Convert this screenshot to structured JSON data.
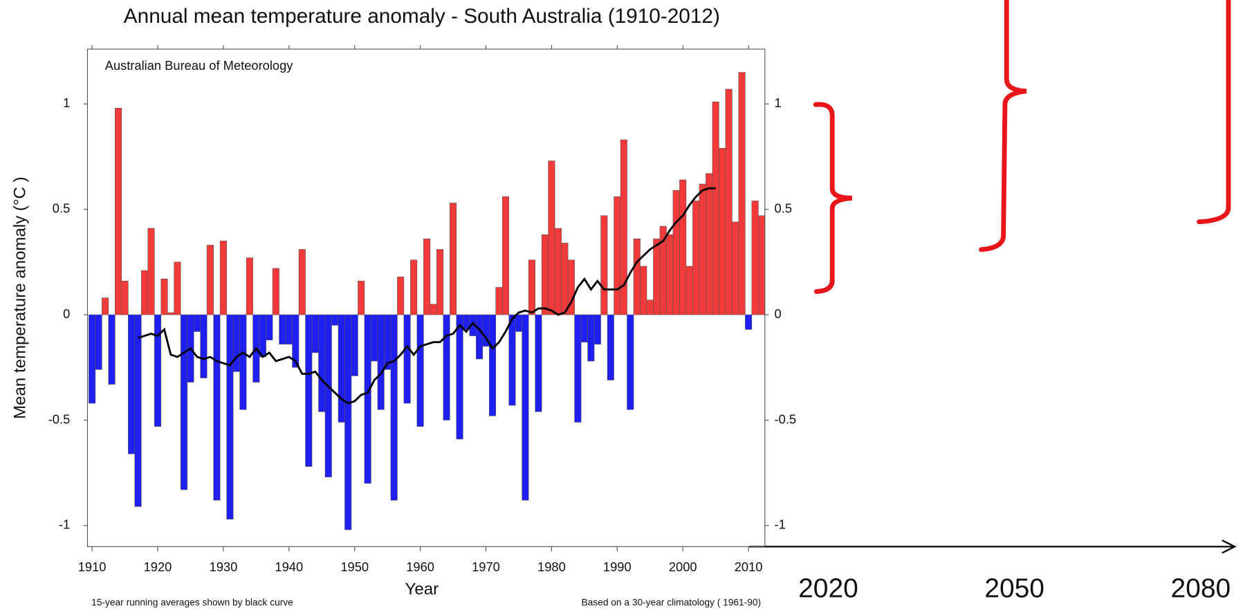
{
  "chart_data": {
    "type": "bar",
    "title": "Annual mean temperature anomaly - South Australia (1910-2012)",
    "source": "Australian Bureau of Meteorology",
    "xlabel": "Year",
    "ylabel": "Mean temperature anomaly (°C )",
    "footnote_left": "15-year running averages shown by black curve",
    "footnote_right": "Based on a 30-year climatology ( 1961-90)",
    "x": [
      1910,
      1911,
      1912,
      1913,
      1914,
      1915,
      1916,
      1917,
      1918,
      1919,
      1920,
      1921,
      1922,
      1923,
      1924,
      1925,
      1926,
      1927,
      1928,
      1929,
      1930,
      1931,
      1932,
      1933,
      1934,
      1935,
      1936,
      1937,
      1938,
      1939,
      1940,
      1941,
      1942,
      1943,
      1944,
      1945,
      1946,
      1947,
      1948,
      1949,
      1950,
      1951,
      1952,
      1953,
      1954,
      1955,
      1956,
      1957,
      1958,
      1959,
      1960,
      1961,
      1962,
      1963,
      1964,
      1965,
      1966,
      1967,
      1968,
      1969,
      1970,
      1971,
      1972,
      1973,
      1974,
      1975,
      1976,
      1977,
      1978,
      1979,
      1980,
      1981,
      1982,
      1983,
      1984,
      1985,
      1986,
      1987,
      1988,
      1989,
      1990,
      1991,
      1992,
      1993,
      1994,
      1995,
      1996,
      1997,
      1998,
      1999,
      2000,
      2001,
      2002,
      2003,
      2004,
      2005,
      2006,
      2007,
      2008,
      2009,
      2010,
      2011,
      2012
    ],
    "values": [
      -0.42,
      -0.26,
      0.08,
      -0.33,
      0.98,
      0.16,
      -0.66,
      -0.91,
      0.21,
      0.41,
      -0.53,
      0.17,
      0.01,
      0.25,
      -0.83,
      -0.32,
      -0.08,
      -0.3,
      0.33,
      -0.88,
      0.35,
      -0.97,
      -0.27,
      -0.45,
      0.27,
      -0.32,
      -0.2,
      -0.12,
      0.22,
      -0.14,
      -0.14,
      -0.25,
      0.31,
      -0.72,
      -0.18,
      -0.46,
      -0.77,
      -0.05,
      -0.51,
      -1.02,
      -0.29,
      0.16,
      -0.8,
      -0.22,
      -0.45,
      -0.26,
      -0.88,
      0.18,
      -0.42,
      0.26,
      -0.53,
      0.36,
      0.05,
      0.31,
      -0.5,
      0.53,
      -0.59,
      -0.07,
      -0.1,
      -0.21,
      -0.15,
      -0.48,
      0.13,
      0.56,
      -0.43,
      -0.08,
      -0.88,
      0.26,
      -0.46,
      0.38,
      0.73,
      0.41,
      0.34,
      0.26,
      -0.51,
      -0.13,
      -0.22,
      -0.14,
      0.47,
      -0.31,
      0.56,
      0.83,
      -0.45,
      0.36,
      0.23,
      0.07,
      0.36,
      0.42,
      0.38,
      0.59,
      0.64,
      0.23,
      0.54,
      0.62,
      0.67,
      1.01,
      0.79,
      1.07,
      0.44,
      1.15,
      -0.07,
      0.54,
      0.47
    ],
    "positive_color": "#f23a3a",
    "negative_color": "#1f1ff2",
    "running_average": {
      "color": "#000000",
      "x": [
        1917,
        1918,
        1919,
        1920,
        1921,
        1922,
        1923,
        1924,
        1925,
        1926,
        1927,
        1928,
        1929,
        1930,
        1931,
        1932,
        1933,
        1934,
        1935,
        1936,
        1937,
        1938,
        1939,
        1940,
        1941,
        1942,
        1943,
        1944,
        1945,
        1946,
        1947,
        1948,
        1949,
        1950,
        1951,
        1952,
        1953,
        1954,
        1955,
        1956,
        1957,
        1958,
        1959,
        1960,
        1961,
        1962,
        1963,
        1964,
        1965,
        1966,
        1967,
        1968,
        1969,
        1970,
        1971,
        1972,
        1973,
        1974,
        1975,
        1976,
        1977,
        1978,
        1979,
        1980,
        1981,
        1982,
        1983,
        1984,
        1985,
        1986,
        1987,
        1988,
        1989,
        1990,
        1991,
        1992,
        1993,
        1994,
        1995,
        1996,
        1997,
        1998,
        1999,
        2000,
        2001,
        2002,
        2003,
        2004,
        2005
      ],
      "values": [
        -0.11,
        -0.1,
        -0.09,
        -0.1,
        -0.07,
        -0.19,
        -0.2,
        -0.18,
        -0.16,
        -0.2,
        -0.21,
        -0.2,
        -0.22,
        -0.23,
        -0.24,
        -0.2,
        -0.18,
        -0.2,
        -0.16,
        -0.2,
        -0.18,
        -0.22,
        -0.21,
        -0.2,
        -0.22,
        -0.28,
        -0.28,
        -0.27,
        -0.31,
        -0.34,
        -0.37,
        -0.4,
        -0.42,
        -0.41,
        -0.38,
        -0.37,
        -0.31,
        -0.28,
        -0.23,
        -0.22,
        -0.19,
        -0.15,
        -0.19,
        -0.15,
        -0.14,
        -0.13,
        -0.13,
        -0.1,
        -0.09,
        -0.05,
        -0.08,
        -0.04,
        -0.07,
        -0.11,
        -0.16,
        -0.13,
        -0.08,
        -0.02,
        0.01,
        0.02,
        0.01,
        0.03,
        0.03,
        0.02,
        0.0,
        0.01,
        0.06,
        0.13,
        0.17,
        0.12,
        0.16,
        0.12,
        0.12,
        0.12,
        0.14,
        0.2,
        0.25,
        0.28,
        0.31,
        0.33,
        0.35,
        0.4,
        0.44,
        0.47,
        0.52,
        0.56,
        0.59,
        0.6,
        0.6
      ]
    },
    "xlim": [
      1909.3,
      2012.5
    ],
    "ylim": [
      -1.1,
      1.26
    ],
    "xticks": [
      1910,
      1920,
      1930,
      1940,
      1950,
      1960,
      1970,
      1980,
      1990,
      2000,
      2010
    ],
    "yticks": [
      -1,
      -0.5,
      0,
      0.5,
      1
    ],
    "projection_labels": [
      "2020",
      "2050",
      "2080"
    ]
  }
}
